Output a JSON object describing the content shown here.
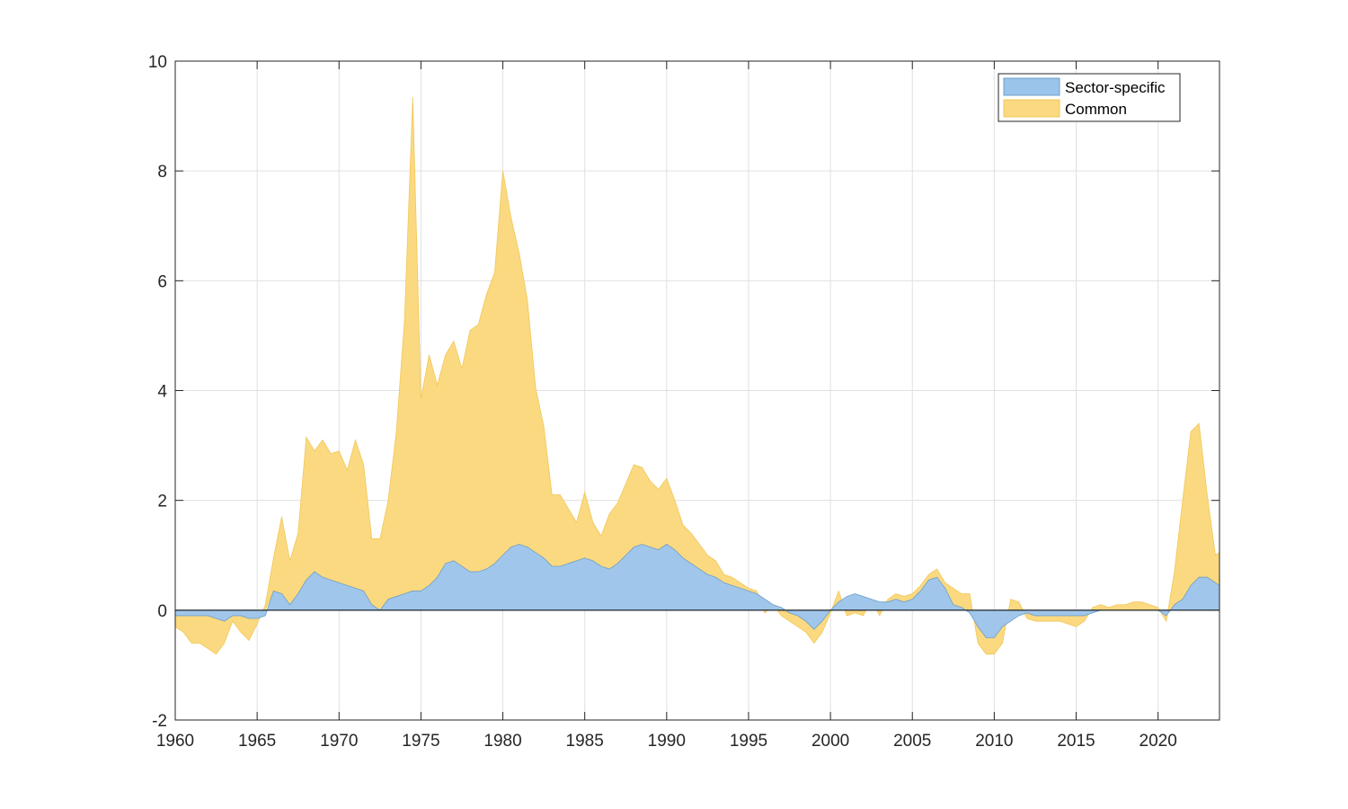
{
  "chart_data": {
    "type": "area",
    "stacking": "signed",
    "title": "",
    "xlabel": "",
    "ylabel": "",
    "xlim": [
      1960,
      2023.75
    ],
    "ylim": [
      -2,
      10
    ],
    "x_ticks": [
      1960,
      1965,
      1970,
      1975,
      1980,
      1985,
      1990,
      1995,
      2000,
      2005,
      2010,
      2015,
      2020
    ],
    "y_ticks": [
      -2,
      0,
      2,
      4,
      6,
      8,
      10
    ],
    "grid": true,
    "legend": {
      "location": "top-right",
      "entries": [
        "Sector-specific",
        "Common"
      ]
    },
    "colors": {
      "sector_specific": "#9bc4ea",
      "common": "#fbd980",
      "zero_line": "#000000",
      "grid": "#e1e1e1",
      "axis": "#262626"
    },
    "x": [
      1960.0,
      1960.5,
      1961.0,
      1961.5,
      1962.0,
      1962.5,
      1963.0,
      1963.5,
      1964.0,
      1964.5,
      1965.0,
      1965.5,
      1966.0,
      1966.5,
      1967.0,
      1967.5,
      1968.0,
      1968.5,
      1969.0,
      1969.5,
      1970.0,
      1970.5,
      1971.0,
      1971.5,
      1972.0,
      1972.5,
      1973.0,
      1973.5,
      1974.0,
      1974.5,
      1975.0,
      1975.5,
      1976.0,
      1976.5,
      1977.0,
      1977.5,
      1978.0,
      1978.5,
      1979.0,
      1979.5,
      1980.0,
      1980.5,
      1981.0,
      1981.5,
      1982.0,
      1982.5,
      1983.0,
      1983.5,
      1984.0,
      1984.5,
      1985.0,
      1985.5,
      1986.0,
      1986.5,
      1987.0,
      1987.5,
      1988.0,
      1988.5,
      1989.0,
      1989.5,
      1990.0,
      1990.5,
      1991.0,
      1991.5,
      1992.0,
      1992.5,
      1993.0,
      1993.5,
      1994.0,
      1994.5,
      1995.0,
      1995.5,
      1996.0,
      1996.5,
      1997.0,
      1997.5,
      1998.0,
      1998.5,
      1999.0,
      1999.5,
      2000.0,
      2000.5,
      2001.0,
      2001.5,
      2002.0,
      2002.5,
      2003.0,
      2003.5,
      2004.0,
      2004.5,
      2005.0,
      2005.5,
      2006.0,
      2006.5,
      2007.0,
      2007.5,
      2008.0,
      2008.5,
      2009.0,
      2009.5,
      2010.0,
      2010.5,
      2011.0,
      2011.5,
      2012.0,
      2012.5,
      2013.0,
      2013.5,
      2014.0,
      2014.5,
      2015.0,
      2015.5,
      2016.0,
      2016.5,
      2017.0,
      2017.5,
      2018.0,
      2018.5,
      2019.0,
      2019.5,
      2020.0,
      2020.5,
      2021.0,
      2021.5,
      2022.0,
      2022.5,
      2023.0,
      2023.5,
      2023.75
    ],
    "series": [
      {
        "name": "Sector-specific",
        "color": "#9bc4ea",
        "values": [
          -0.1,
          -0.1,
          -0.1,
          -0.1,
          -0.1,
          -0.15,
          -0.2,
          -0.1,
          -0.1,
          -0.15,
          -0.15,
          -0.1,
          0.35,
          0.3,
          0.1,
          0.3,
          0.55,
          0.7,
          0.6,
          0.55,
          0.5,
          0.45,
          0.4,
          0.35,
          0.1,
          0.0,
          0.2,
          0.25,
          0.3,
          0.35,
          0.35,
          0.45,
          0.6,
          0.85,
          0.9,
          0.8,
          0.7,
          0.7,
          0.75,
          0.85,
          1.0,
          1.15,
          1.2,
          1.15,
          1.05,
          0.95,
          0.8,
          0.8,
          0.85,
          0.9,
          0.95,
          0.9,
          0.8,
          0.75,
          0.85,
          1.0,
          1.15,
          1.2,
          1.15,
          1.1,
          1.2,
          1.1,
          0.95,
          0.85,
          0.75,
          0.65,
          0.6,
          0.5,
          0.45,
          0.4,
          0.35,
          0.3,
          0.2,
          0.1,
          0.05,
          -0.05,
          -0.1,
          -0.2,
          -0.35,
          -0.2,
          0.0,
          0.15,
          0.25,
          0.3,
          0.25,
          0.2,
          0.15,
          0.15,
          0.2,
          0.15,
          0.2,
          0.35,
          0.55,
          0.6,
          0.4,
          0.1,
          0.05,
          -0.05,
          -0.3,
          -0.5,
          -0.5,
          -0.3,
          -0.2,
          -0.1,
          -0.05,
          -0.1,
          -0.1,
          -0.1,
          -0.1,
          -0.1,
          -0.1,
          -0.1,
          -0.05,
          0.0,
          0.0,
          0.0,
          0.0,
          0.0,
          0.0,
          0.0,
          0.0,
          -0.1,
          0.1,
          0.2,
          0.45,
          0.6,
          0.6,
          0.5,
          0.45
        ]
      },
      {
        "name": "Common",
        "color": "#fbd980",
        "values": [
          -0.2,
          -0.3,
          -0.5,
          -0.5,
          -0.6,
          -0.65,
          -0.4,
          -0.1,
          -0.3,
          -0.4,
          -0.1,
          0.1,
          0.6,
          1.4,
          0.8,
          1.1,
          2.6,
          2.2,
          2.5,
          2.3,
          2.4,
          2.1,
          2.7,
          2.3,
          1.2,
          1.3,
          1.8,
          3.0,
          5.0,
          9.0,
          3.5,
          4.2,
          3.5,
          3.8,
          4.0,
          3.6,
          4.4,
          4.5,
          5.0,
          5.3,
          7.0,
          6.0,
          5.3,
          4.5,
          3.0,
          2.4,
          1.3,
          1.3,
          1.0,
          0.7,
          1.2,
          0.7,
          0.55,
          1.0,
          1.1,
          1.3,
          1.5,
          1.4,
          1.2,
          1.1,
          1.2,
          0.9,
          0.6,
          0.55,
          0.45,
          0.35,
          0.3,
          0.15,
          0.15,
          0.1,
          0.05,
          0.05,
          -0.05,
          0.0,
          -0.1,
          -0.15,
          -0.2,
          -0.2,
          -0.25,
          -0.2,
          -0.05,
          0.2,
          -0.1,
          -0.05,
          -0.1,
          0.0,
          -0.1,
          0.05,
          0.1,
          0.1,
          0.1,
          0.1,
          0.1,
          0.15,
          0.1,
          0.3,
          0.25,
          0.3,
          -0.3,
          -0.3,
          -0.3,
          -0.3,
          0.2,
          0.15,
          -0.1,
          -0.1,
          -0.1,
          -0.1,
          -0.1,
          -0.15,
          -0.2,
          -0.1,
          0.05,
          0.1,
          0.05,
          0.1,
          0.1,
          0.15,
          0.15,
          0.1,
          0.05,
          -0.1,
          0.6,
          1.8,
          2.8,
          2.8,
          1.5,
          0.5,
          0.6
        ]
      }
    ]
  }
}
